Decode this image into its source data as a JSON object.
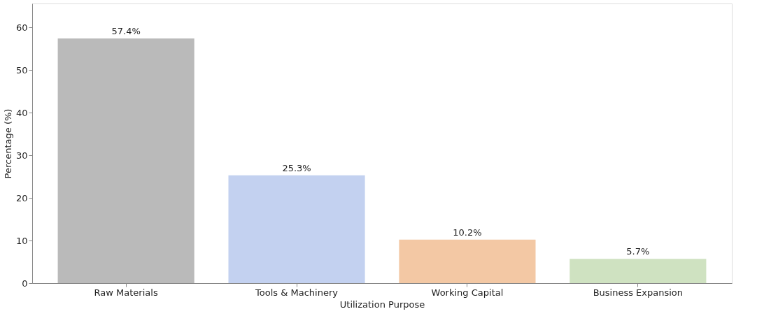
{
  "chart_data": {
    "type": "bar",
    "xlabel": "Utilization Purpose",
    "ylabel": "Percentage (%)",
    "categories": [
      "Raw Materials",
      "Tools & Machinery",
      "Working Capital",
      "Business Expansion"
    ],
    "values": [
      57.4,
      25.3,
      10.2,
      5.7
    ],
    "colors": [
      "#bababa",
      "#c3d1f0",
      "#f3c8a4",
      "#cfe2c1"
    ],
    "value_labels": [
      "57.4%",
      "25.3%",
      "10.2%",
      "5.7%"
    ],
    "ylim": [
      0,
      65.6
    ],
    "yticks": [
      0,
      10,
      20,
      30,
      40,
      50,
      60
    ],
    "grid": false,
    "legend": false
  }
}
